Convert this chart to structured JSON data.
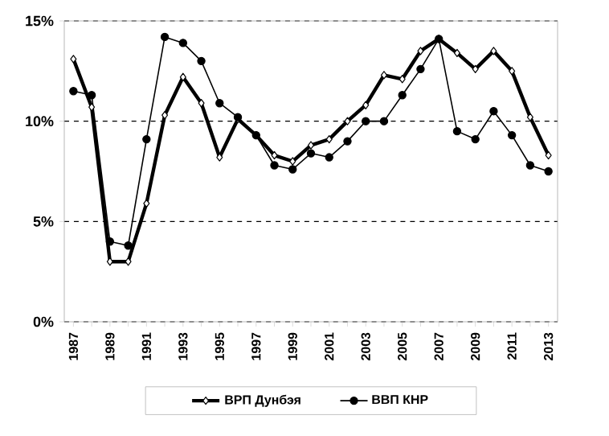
{
  "chart_data": {
    "type": "line",
    "categories": [
      "1987",
      null,
      "1989",
      null,
      "1991",
      null,
      "1993",
      null,
      "1995",
      null,
      "1997",
      null,
      "1999",
      null,
      "2001",
      null,
      "2003",
      null,
      "2005",
      null,
      "2007",
      null,
      "2009",
      null,
      "2011",
      null,
      "2013"
    ],
    "series": [
      {
        "name": "ВРП Дунбэя",
        "color": "#000000",
        "marker": "diamond",
        "values": [
          13.1,
          10.7,
          3.0,
          3.0,
          5.9,
          10.3,
          12.2,
          10.9,
          8.2,
          10.1,
          9.3,
          8.3,
          8.0,
          8.8,
          9.1,
          10.0,
          10.8,
          12.3,
          12.1,
          13.5,
          14.1,
          13.4,
          12.6,
          13.5,
          12.5,
          10.2,
          8.3
        ]
      },
      {
        "name": "ВВП КНР",
        "color": "#000000",
        "marker": "circle",
        "values": [
          11.5,
          11.3,
          4.0,
          3.8,
          9.1,
          14.2,
          13.9,
          13.0,
          10.9,
          10.2,
          9.3,
          7.8,
          7.6,
          8.4,
          8.2,
          9.0,
          10.0,
          10.0,
          11.3,
          12.6,
          14.1,
          9.5,
          9.1,
          10.5,
          9.3,
          7.8,
          7.5
        ]
      }
    ],
    "ylim": [
      0,
      15
    ],
    "yticks": [
      {
        "value": 0,
        "label": "0%"
      },
      {
        "value": 5,
        "label": "5%"
      },
      {
        "value": 10,
        "label": "10%"
      },
      {
        "value": 15,
        "label": "15%"
      }
    ],
    "grid": "y",
    "legend": "bottom"
  }
}
